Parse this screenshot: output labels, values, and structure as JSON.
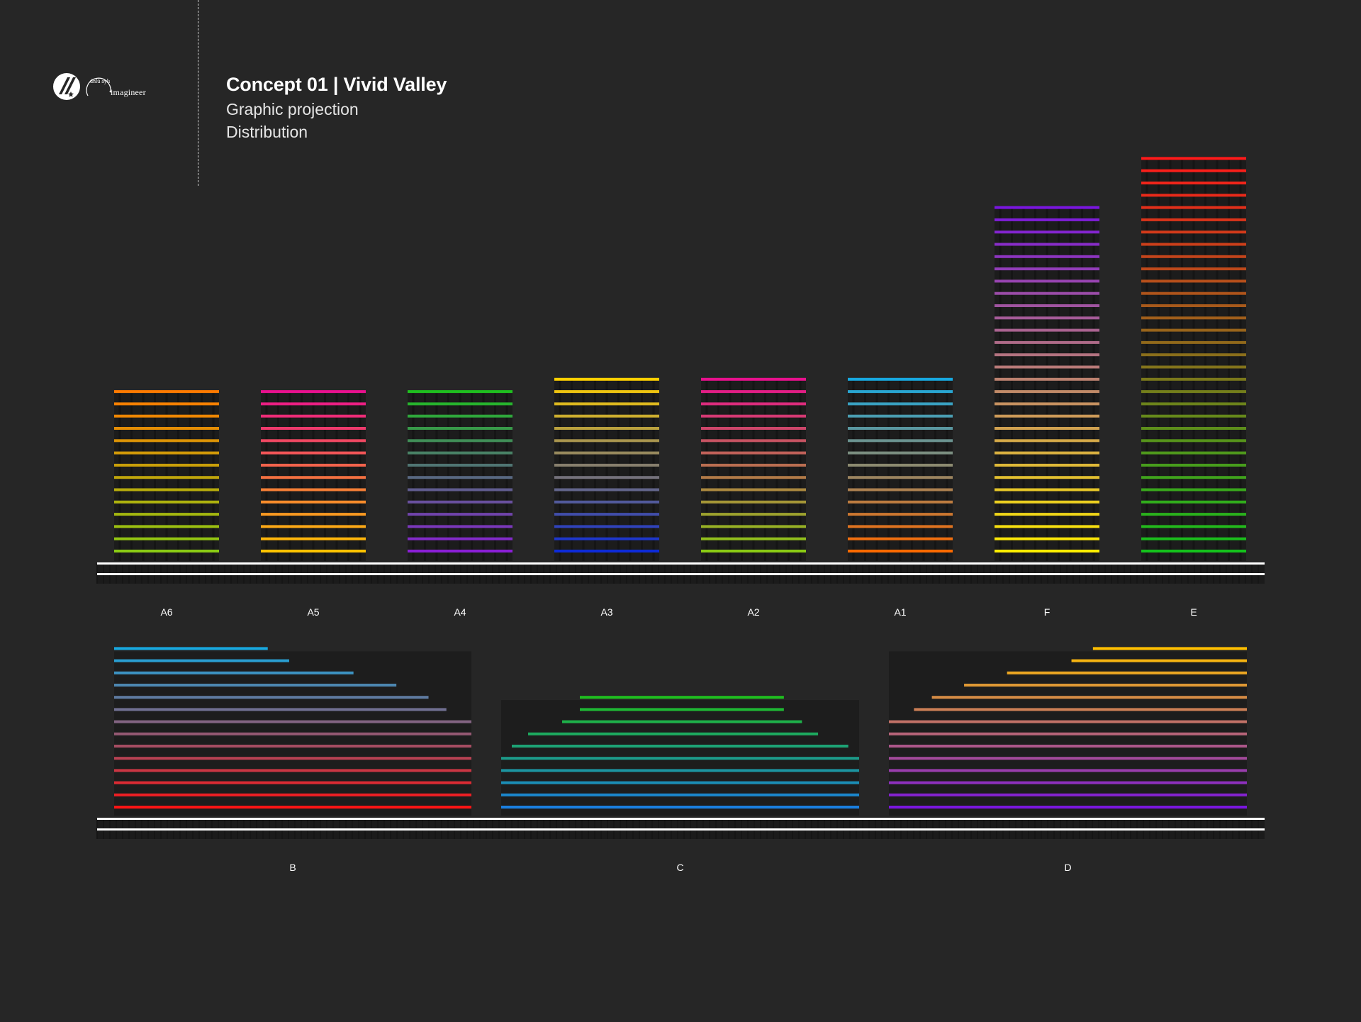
{
  "logo": {
    "seal_text": "ünlü aylı",
    "wordmark": "imagineer"
  },
  "header": {
    "title": "Concept 01 | Vivid Valley",
    "subtitle": "Graphic projection",
    "caption": "Distribution"
  },
  "colors": {
    "background": "#262626",
    "ground_line": "#ffffff",
    "label": "#ffffff"
  },
  "buildings_top": [
    {
      "label": "A6",
      "floors": 14,
      "color_top": "#ff7a00",
      "color_bottom": "#8acb14"
    },
    {
      "label": "A5",
      "floors": 14,
      "color_top": "#e8118d",
      "color_bottom": "#ffc300"
    },
    {
      "label": "A4",
      "floors": 14,
      "color_top": "#1fbf1f",
      "color_bottom": "#8a1fd6"
    },
    {
      "label": "A3",
      "floors": 15,
      "color_top": "#ffd000",
      "color_bottom": "#0d2bd9"
    },
    {
      "label": "A2",
      "floors": 15,
      "color_top": "#e8118d",
      "color_bottom": "#8acb14"
    },
    {
      "label": "A1",
      "floors": 15,
      "color_top": "#18a9e0",
      "color_bottom": "#ff6a00"
    },
    {
      "label": "F",
      "floors": 29,
      "color_top": "#7a16e0",
      "color_bottom": "#ffee00"
    },
    {
      "label": "E",
      "floors": 33,
      "color_top": "#ff1a1a",
      "color_bottom": "#14c21c"
    }
  ],
  "buildings_bottom": [
    {
      "label": "B",
      "shape": "descending",
      "floors": 14,
      "color_top": "#18a9e0",
      "color_bottom": "#ff1414",
      "tiers": [
        0.43,
        0.49,
        0.67,
        0.79,
        0.88,
        0.93,
        1,
        1,
        1,
        1,
        1,
        1,
        1,
        1
      ]
    },
    {
      "label": "C",
      "shape": "pyramid",
      "floors": 10,
      "color_top": "#1fbf1f",
      "color_bottom": "#1a7fe0",
      "tiers": [
        0.57,
        0.57,
        0.67,
        0.81,
        0.94,
        1,
        1,
        1,
        1,
        1
      ]
    },
    {
      "label": "D",
      "shape": "ascending",
      "floors": 14,
      "color_top": "#ffc000",
      "color_bottom": "#7a16e0",
      "tiers": [
        0.43,
        0.49,
        0.67,
        0.79,
        0.88,
        0.93,
        1,
        1,
        1,
        1,
        1,
        1,
        1,
        1
      ]
    }
  ]
}
